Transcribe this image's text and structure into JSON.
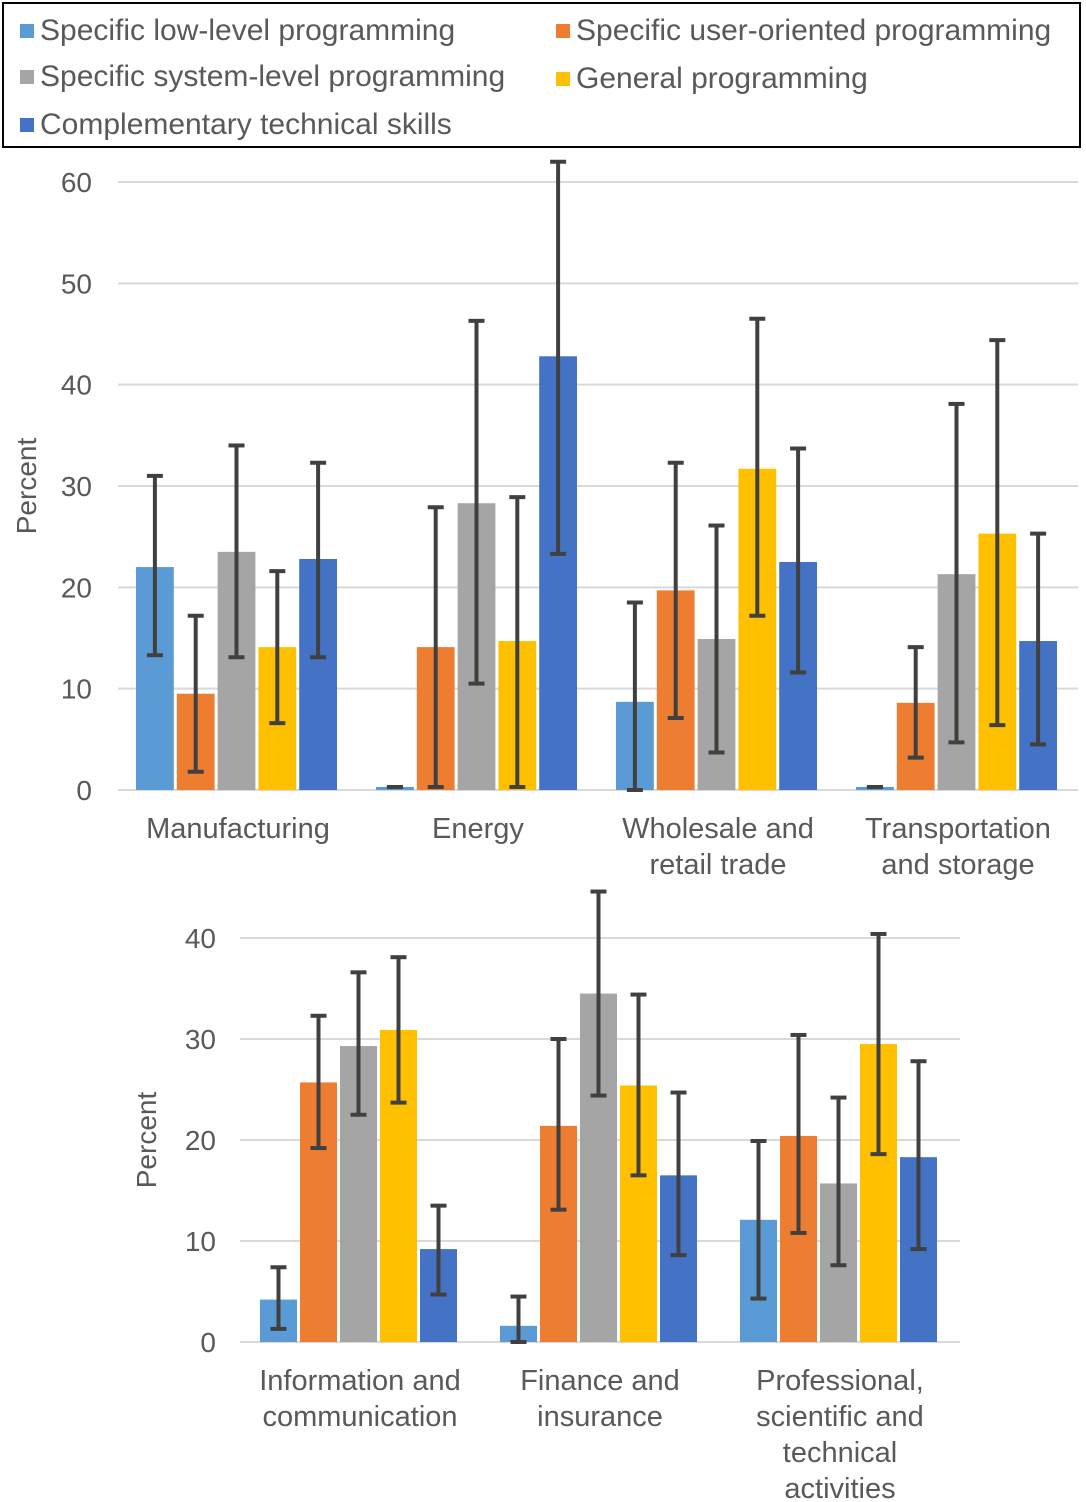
{
  "legend": {
    "items": [
      {
        "label": "Specific low-level programming",
        "color": "#5b9bd5"
      },
      {
        "label": "Specific user-oriented programming",
        "color": "#ed7d31"
      },
      {
        "label": "Specific system-level programming",
        "color": "#a5a5a5"
      },
      {
        "label": "General programming",
        "color": "#ffc000"
      },
      {
        "label": "Complementary technical skills",
        "color": "#4472c4"
      }
    ]
  },
  "chart_data": [
    {
      "type": "bar",
      "ylabel": "Percent",
      "ylim": [
        0,
        60
      ],
      "yticks": [
        0,
        10,
        20,
        30,
        40,
        50,
        60
      ],
      "grid": true,
      "categories": [
        [
          "Manufacturing"
        ],
        [
          "Energy"
        ],
        [
          "Wholesale and",
          "retail trade"
        ],
        [
          "Transportation",
          "and storage"
        ]
      ],
      "series": [
        {
          "name": "Specific low-level programming",
          "color": "#5b9bd5",
          "values": [
            22.0,
            0.3,
            8.7,
            0.3
          ],
          "err_low": [
            13.3,
            0.3,
            0.0,
            0.3
          ],
          "err_high": [
            31.0,
            0.3,
            18.5,
            0.3
          ]
        },
        {
          "name": "Specific user-oriented programming",
          "color": "#ed7d31",
          "values": [
            9.5,
            14.1,
            19.7,
            8.6
          ],
          "err_low": [
            1.8,
            0.3,
            7.1,
            3.2
          ],
          "err_high": [
            17.2,
            27.9,
            32.3,
            14.1
          ]
        },
        {
          "name": "Specific system-level programming",
          "color": "#a5a5a5",
          "values": [
            23.5,
            28.3,
            14.9,
            21.3
          ],
          "err_low": [
            13.1,
            10.5,
            3.7,
            4.7
          ],
          "err_high": [
            34.0,
            46.3,
            26.1,
            38.1
          ]
        },
        {
          "name": "General programming",
          "color": "#ffc000",
          "values": [
            14.1,
            14.7,
            31.7,
            25.3
          ],
          "err_low": [
            6.6,
            0.3,
            17.2,
            6.4
          ],
          "err_high": [
            21.6,
            28.9,
            46.5,
            44.4
          ]
        },
        {
          "name": "Complementary technical skills",
          "color": "#4472c4",
          "values": [
            22.8,
            42.8,
            22.5,
            14.7
          ],
          "err_low": [
            13.1,
            23.3,
            11.6,
            4.5
          ],
          "err_high": [
            32.3,
            62.0,
            33.7,
            25.3
          ]
        }
      ]
    },
    {
      "type": "bar",
      "ylabel": "Percent",
      "ylim": [
        0,
        40
      ],
      "yticks": [
        0,
        10,
        20,
        30,
        40
      ],
      "grid": true,
      "categories": [
        [
          "Information and",
          "communication"
        ],
        [
          "Finance and",
          "insurance"
        ],
        [
          "Professional,",
          "scientific and",
          "technical",
          "activities"
        ]
      ],
      "series": [
        {
          "name": "Specific low-level programming",
          "color": "#5b9bd5",
          "values": [
            4.2,
            1.6,
            12.1
          ],
          "err_low": [
            1.3,
            0.0,
            4.3
          ],
          "err_high": [
            7.4,
            4.5,
            19.9
          ]
        },
        {
          "name": "Specific user-oriented programming",
          "color": "#ed7d31",
          "values": [
            25.7,
            21.4,
            20.4
          ],
          "err_low": [
            19.2,
            13.1,
            10.8
          ],
          "err_high": [
            32.3,
            30.0,
            30.4
          ]
        },
        {
          "name": "Specific system-level programming",
          "color": "#a5a5a5",
          "values": [
            29.3,
            34.5,
            15.7
          ],
          "err_low": [
            22.5,
            24.4,
            7.6
          ],
          "err_high": [
            36.6,
            44.6,
            24.2
          ]
        },
        {
          "name": "General programming",
          "color": "#ffc000",
          "values": [
            30.9,
            25.4,
            29.5
          ],
          "err_low": [
            23.7,
            16.5,
            18.6
          ],
          "err_high": [
            38.1,
            34.4,
            40.4
          ]
        },
        {
          "name": "Complementary technical skills",
          "color": "#4472c4",
          "values": [
            9.2,
            16.5,
            18.3
          ],
          "err_low": [
            4.7,
            8.6,
            9.2
          ],
          "err_high": [
            13.5,
            24.7,
            27.8
          ]
        }
      ]
    }
  ]
}
